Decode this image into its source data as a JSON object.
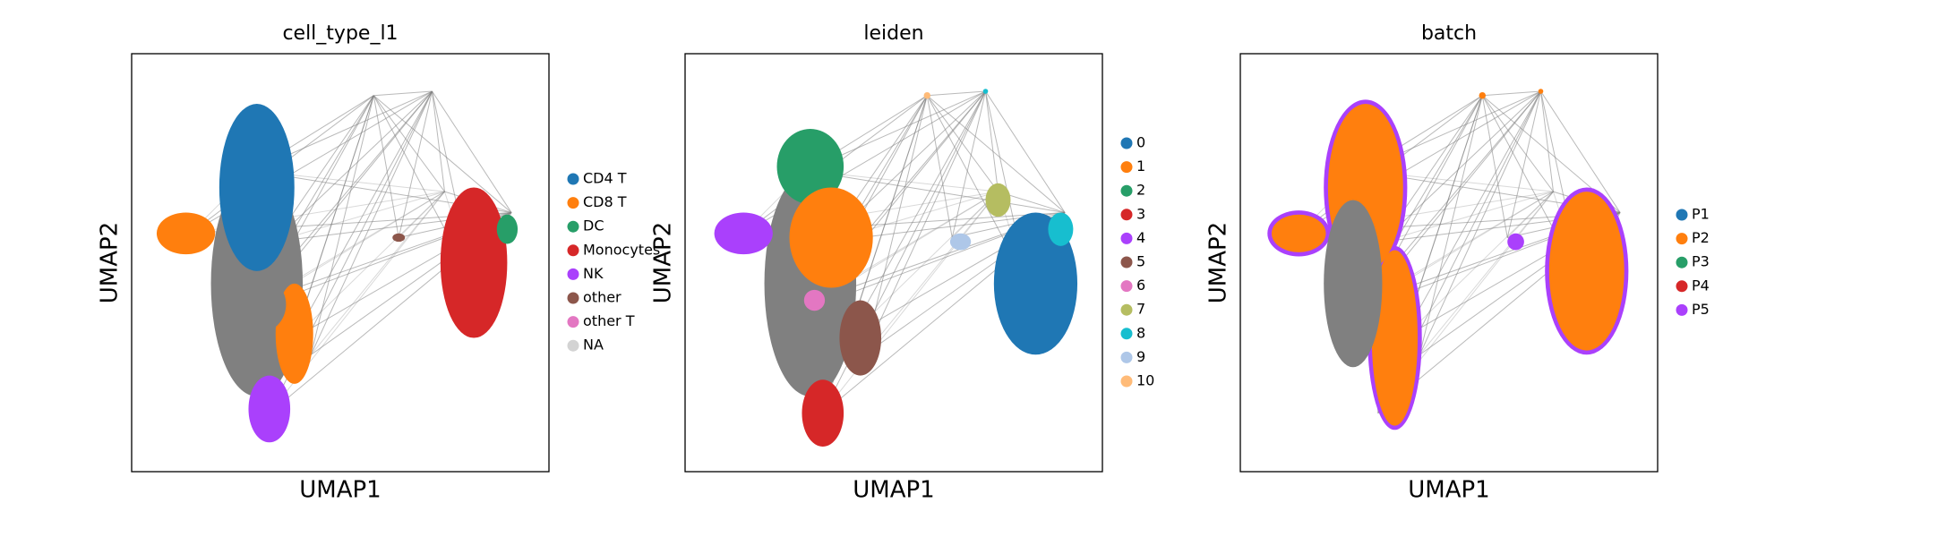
{
  "chart_data": [
    {
      "type": "scatter",
      "title": "cell_type_l1",
      "xlabel": "UMAP1",
      "ylabel": "UMAP2",
      "categories": [
        "CD4 T",
        "CD8 T",
        "DC",
        "Monocytes",
        "NK",
        "other",
        "other T",
        "NA"
      ],
      "colors": [
        "#1f77b4",
        "#ff7f0e",
        "#279e68",
        "#d62728",
        "#aa40fc",
        "#8c564b",
        "#e377c2",
        "#d3d3d3"
      ]
    },
    {
      "type": "scatter",
      "title": "leiden",
      "xlabel": "UMAP1",
      "ylabel": "UMAP2",
      "categories": [
        "0",
        "1",
        "2",
        "3",
        "4",
        "5",
        "6",
        "7",
        "8",
        "9",
        "10"
      ],
      "colors": [
        "#1f77b4",
        "#ff7f0e",
        "#279e68",
        "#d62728",
        "#aa40fc",
        "#8c564b",
        "#e377c2",
        "#b5bd61",
        "#17becf",
        "#aec7e8",
        "#ffbb78"
      ]
    },
    {
      "type": "scatter",
      "title": "batch",
      "xlabel": "UMAP1",
      "ylabel": "UMAP2",
      "categories": [
        "P1",
        "P2",
        "P3",
        "P4",
        "P5"
      ],
      "colors": [
        "#1f77b4",
        "#ff7f0e",
        "#279e68",
        "#d62728",
        "#aa40fc"
      ]
    }
  ]
}
